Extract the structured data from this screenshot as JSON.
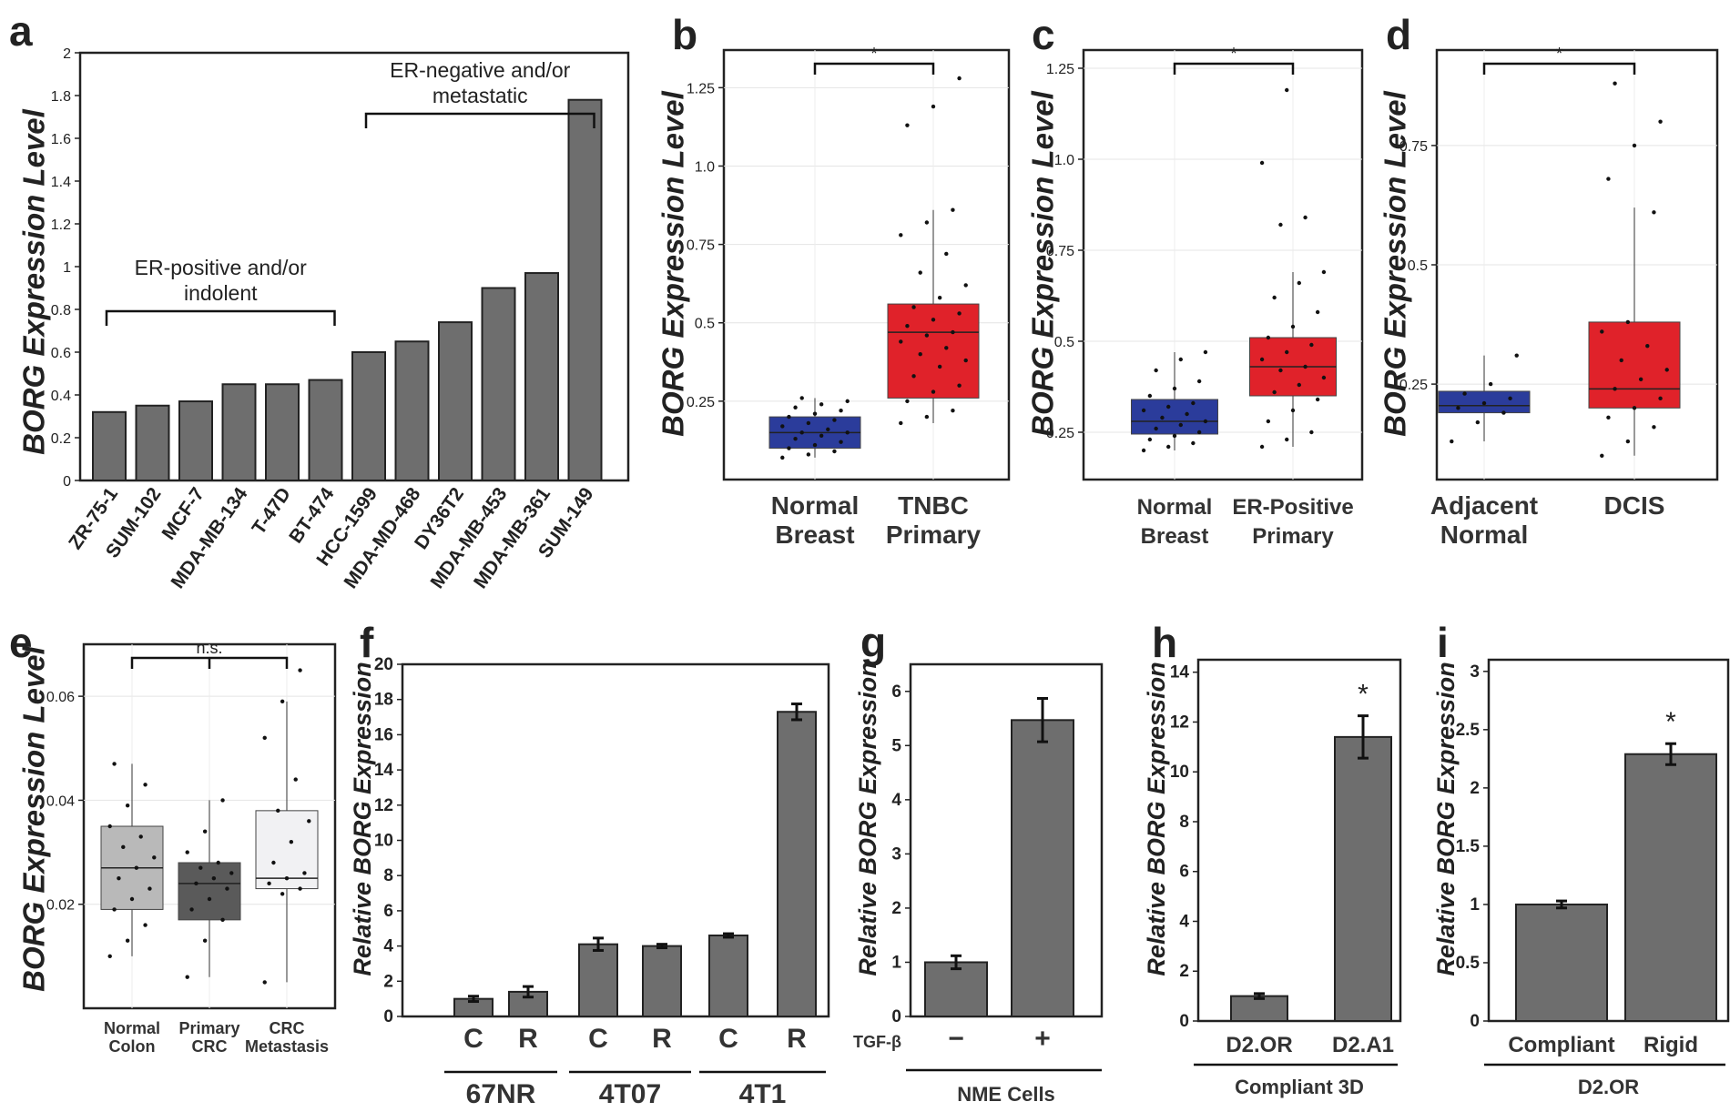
{
  "chart_data": [
    {
      "id": "a",
      "panel_label": "a",
      "type": "bar",
      "ylabel": "BORG Expression Level",
      "ylim": [
        0,
        2
      ],
      "yticks": [
        "0",
        "0.2",
        "0.4",
        "0.6",
        "0.8",
        "1",
        "1.2",
        "1.4",
        "1.6",
        "1.8",
        "2"
      ],
      "categories": [
        "ZR-75-1",
        "SUM-102",
        "MCF-7",
        "MDA-MB-134",
        "T-47D",
        "BT-474",
        "HCC-1599",
        "MDA-MD-468",
        "DY36T2",
        "MDA-MB-453",
        "MDA-MB-361",
        "SUM-149"
      ],
      "values": [
        0.32,
        0.35,
        0.37,
        0.45,
        0.45,
        0.47,
        0.6,
        0.65,
        0.74,
        0.9,
        0.97,
        1.78
      ],
      "bar_color": "#6e6e6e",
      "annotations": [
        {
          "text": "ER-positive and/or",
          "text2": "indolent",
          "from_index": 0,
          "to_index": 5
        },
        {
          "text": "ER-negative and/or",
          "text2": "metastatic",
          "from_index": 6,
          "to_index": 11
        }
      ]
    },
    {
      "id": "b",
      "panel_label": "b",
      "type": "box",
      "ylabel": "BORG Expression Level",
      "yticks": [
        "0.25",
        "0.5",
        "0.75",
        "1.0",
        "1.25"
      ],
      "ylim": [
        0.0,
        1.37
      ],
      "groups": [
        {
          "label": "Normal Breast",
          "label_lines": [
            "Normal",
            "Breast"
          ],
          "color": "#2b3c9b",
          "q1": 0.1,
          "median": 0.15,
          "q3": 0.2,
          "whisker_low": 0.07,
          "whisker_high": 0.26,
          "points": [
            0.07,
            0.08,
            0.09,
            0.1,
            0.11,
            0.12,
            0.13,
            0.14,
            0.15,
            0.15,
            0.16,
            0.17,
            0.18,
            0.19,
            0.2,
            0.21,
            0.22,
            0.23,
            0.24,
            0.25,
            0.26
          ]
        },
        {
          "label": "TNBC Primary",
          "label_lines": [
            "TNBC",
            "Primary"
          ],
          "color": "#e0222a",
          "q1": 0.26,
          "median": 0.47,
          "q3": 0.56,
          "whisker_low": 0.18,
          "whisker_high": 0.86,
          "points": [
            0.18,
            0.2,
            0.22,
            0.25,
            0.28,
            0.3,
            0.33,
            0.36,
            0.38,
            0.4,
            0.42,
            0.44,
            0.46,
            0.47,
            0.49,
            0.51,
            0.53,
            0.55,
            0.58,
            0.62,
            0.66,
            0.72,
            0.78,
            0.82,
            0.86,
            1.13,
            1.19,
            1.28
          ]
        }
      ],
      "significance": "*"
    },
    {
      "id": "c",
      "panel_label": "c",
      "type": "box",
      "ylabel": "BORG Expression Level",
      "yticks": [
        "0.25",
        "0.5",
        "0.75",
        "1.0",
        "1.25"
      ],
      "ylim": [
        0.12,
        1.3
      ],
      "groups": [
        {
          "label": "Normal Breast",
          "label_lines": [
            "Normal",
            "Breast"
          ],
          "color": "#2b3c9b",
          "q1": 0.245,
          "median": 0.28,
          "q3": 0.34,
          "whisker_low": 0.2,
          "whisker_high": 0.47,
          "points": [
            0.2,
            0.21,
            0.22,
            0.23,
            0.24,
            0.25,
            0.26,
            0.27,
            0.28,
            0.29,
            0.3,
            0.31,
            0.32,
            0.33,
            0.35,
            0.37,
            0.39,
            0.42,
            0.45,
            0.47
          ]
        },
        {
          "label": "ER-Positive Primary",
          "label_lines": [
            "ER-Positive",
            "Primary"
          ],
          "color": "#e0222a",
          "q1": 0.35,
          "median": 0.43,
          "q3": 0.51,
          "whisker_low": 0.21,
          "whisker_high": 0.69,
          "points": [
            0.21,
            0.23,
            0.25,
            0.28,
            0.31,
            0.34,
            0.36,
            0.38,
            0.4,
            0.42,
            0.43,
            0.45,
            0.47,
            0.49,
            0.51,
            0.54,
            0.58,
            0.62,
            0.66,
            0.69,
            0.82,
            0.84,
            0.99,
            1.19
          ]
        }
      ],
      "significance": "*"
    },
    {
      "id": "d",
      "panel_label": "d",
      "type": "box",
      "ylabel": "BORG Expression Level",
      "yticks": [
        "0.25",
        "0.5",
        "0.75"
      ],
      "ylim": [
        0.05,
        0.95
      ],
      "groups": [
        {
          "label": "Adjacent Normal",
          "label_lines": [
            "Adjacent",
            "Normal"
          ],
          "color": "#2b3c9b",
          "q1": 0.19,
          "median": 0.205,
          "q3": 0.235,
          "whisker_low": 0.13,
          "whisker_high": 0.31,
          "points": [
            0.13,
            0.17,
            0.19,
            0.2,
            0.21,
            0.22,
            0.23,
            0.25,
            0.31
          ]
        },
        {
          "label": "DCIS",
          "label_lines": [
            "DCIS"
          ],
          "color": "#e0222a",
          "q1": 0.2,
          "median": 0.24,
          "q3": 0.38,
          "whisker_low": 0.1,
          "whisker_high": 0.62,
          "points": [
            0.1,
            0.13,
            0.16,
            0.18,
            0.2,
            0.22,
            0.24,
            0.26,
            0.28,
            0.3,
            0.33,
            0.36,
            0.38,
            0.61,
            0.68,
            0.75,
            0.8,
            0.88
          ]
        }
      ],
      "significance": "*"
    },
    {
      "id": "e",
      "panel_label": "e",
      "type": "box",
      "ylabel": "BORG Expression Level",
      "yticks": [
        "0.02",
        "0.04",
        "0.06"
      ],
      "ylim": [
        0.0,
        0.07
      ],
      "groups": [
        {
          "label": "Normal Colon",
          "label_lines": [
            "Normal",
            "Colon"
          ],
          "color": "#b9b9b9",
          "q1": 0.019,
          "median": 0.027,
          "q3": 0.035,
          "whisker_low": 0.01,
          "whisker_high": 0.047,
          "points": [
            0.01,
            0.013,
            0.016,
            0.019,
            0.021,
            0.023,
            0.025,
            0.027,
            0.029,
            0.031,
            0.033,
            0.035,
            0.039,
            0.043,
            0.047
          ]
        },
        {
          "label": "Primary CRC",
          "label_lines": [
            "Primary",
            "CRC"
          ],
          "color": "#5a5a5a",
          "q1": 0.017,
          "median": 0.024,
          "q3": 0.028,
          "whisker_low": 0.006,
          "whisker_high": 0.04,
          "points": [
            0.006,
            0.013,
            0.017,
            0.019,
            0.021,
            0.023,
            0.024,
            0.025,
            0.026,
            0.027,
            0.028,
            0.03,
            0.034,
            0.04
          ]
        },
        {
          "label": "CRC Metastasis",
          "label_lines": [
            "CRC",
            "Metastasis"
          ],
          "color": "#f1f1f3",
          "q1": 0.023,
          "median": 0.025,
          "q3": 0.038,
          "whisker_low": 0.005,
          "whisker_high": 0.059,
          "points": [
            0.005,
            0.022,
            0.023,
            0.024,
            0.025,
            0.026,
            0.028,
            0.032,
            0.036,
            0.038,
            0.044,
            0.052,
            0.059,
            0.065
          ]
        }
      ],
      "significance": "n.s."
    },
    {
      "id": "f",
      "panel_label": "f",
      "type": "bar",
      "ylabel": "Relative BORG Expression",
      "ylim": [
        0,
        20
      ],
      "yticks": [
        "0",
        "2",
        "4",
        "6",
        "8",
        "10",
        "12",
        "14",
        "16",
        "18",
        "20"
      ],
      "categories": [
        "C",
        "R",
        "C",
        "R",
        "C",
        "R"
      ],
      "groups": [
        "67NR",
        "4T07",
        "4T1"
      ],
      "values": [
        1.0,
        1.4,
        4.1,
        4.0,
        4.6,
        17.3
      ],
      "errors": [
        0.15,
        0.3,
        0.35,
        0.1,
        0.1,
        0.45
      ],
      "bar_color": "#6e6e6e"
    },
    {
      "id": "g",
      "panel_label": "g",
      "type": "bar",
      "ylabel": "Relative BORG Expression",
      "ylim": [
        0,
        6.5
      ],
      "yticks": [
        "0",
        "1",
        "2",
        "3",
        "4",
        "5",
        "6"
      ],
      "categories": [
        "−",
        "+"
      ],
      "row_label": "TGF-β",
      "group_label": "NME Cells",
      "values": [
        1.0,
        5.47
      ],
      "errors": [
        0.12,
        0.4
      ],
      "bar_color": "#6e6e6e"
    },
    {
      "id": "h",
      "panel_label": "h",
      "type": "bar",
      "ylabel": "Relative BORG Expression",
      "ylim": [
        0,
        14.5
      ],
      "yticks": [
        "0",
        "2",
        "4",
        "6",
        "8",
        "10",
        "12",
        "14"
      ],
      "categories": [
        "D2.OR",
        "D2.A1"
      ],
      "group_label": "Compliant 3D",
      "values": [
        1.0,
        11.4
      ],
      "errors": [
        0.1,
        0.85
      ],
      "significance": "*",
      "bar_color": "#6e6e6e"
    },
    {
      "id": "i",
      "panel_label": "i",
      "type": "bar",
      "ylabel": "Relative BORG Expression",
      "ylim": [
        0,
        3.1
      ],
      "yticks": [
        "0",
        "0.5",
        "1",
        "1.5",
        "2",
        "2.5",
        "3"
      ],
      "categories": [
        "Compliant",
        "Rigid"
      ],
      "group_label": "D2.OR",
      "values": [
        1.0,
        2.29
      ],
      "errors": [
        0.03,
        0.09
      ],
      "significance": "*",
      "bar_color": "#6e6e6e"
    }
  ]
}
